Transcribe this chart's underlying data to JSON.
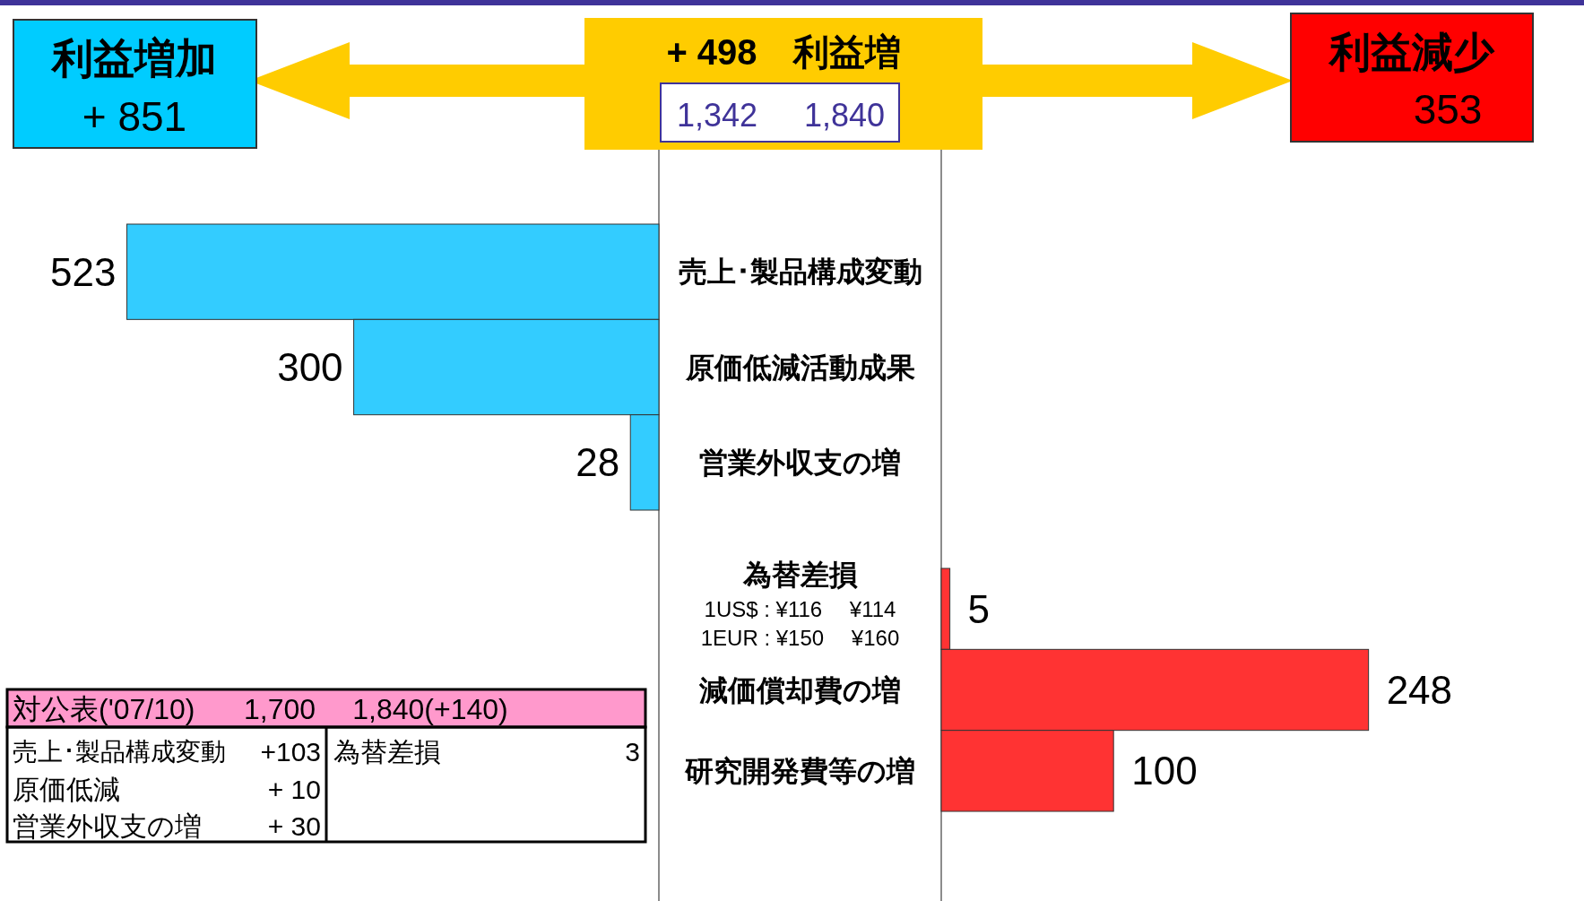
{
  "chart_data": [
    {
      "type": "bar",
      "orientation": "horizontal",
      "categories": [
        "売上･製品構成変動",
        "原価低減活動成果",
        "営業外収支の増"
      ],
      "values": [
        523,
        300,
        28
      ],
      "color": "#33ccff",
      "data_labels": true
    },
    {
      "type": "bar",
      "orientation": "horizontal",
      "categories": [
        "為替差損",
        "減価償却費の増",
        "研究開発費等の増"
      ],
      "values": [
        5,
        248,
        100
      ],
      "color": "#ff3333",
      "data_labels": true,
      "annotations": [
        "1US$ : ¥116　 ¥114",
        "1EUR : ¥150　 ¥160"
      ]
    },
    {
      "type": "other",
      "annotations": [
        "利益増加",
        "+ 851",
        "+ 498　利益増",
        "1,342",
        "1,840",
        "利益減少",
        "353",
        "対公表('07/10)",
        "1,700",
        "1,840(+140)",
        "売上･製品構成変動",
        "+103",
        "原価低減",
        "+ 10",
        "営業外収支の増",
        "+ 30",
        "為替差損",
        "3"
      ]
    }
  ]
}
